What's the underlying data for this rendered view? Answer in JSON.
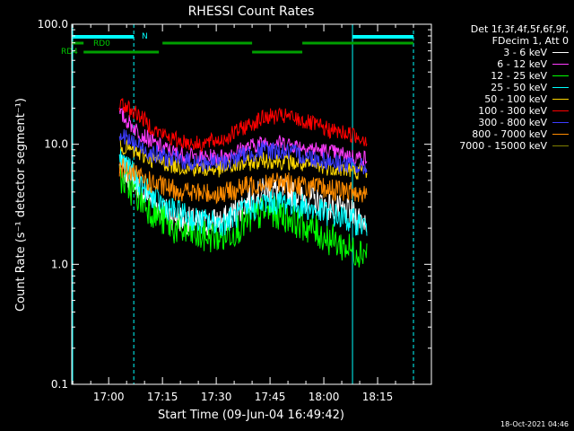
{
  "chart_data": {
    "type": "line",
    "title": "RHESSI Count Rates",
    "xlabel": "Start Time (09-Jun-04 16:49:42)",
    "ylabel": "Count Rate (s⁻¹ detector segment⁻¹)",
    "y_scale": "log",
    "ylim": [
      0.1,
      100
    ],
    "xlim": [
      "16:49:42",
      "18:30:00"
    ],
    "x_ticks": [
      "17:00",
      "17:15",
      "17:30",
      "17:45",
      "18:00",
      "18:15"
    ],
    "y_ticks": [
      "100.0",
      "10.0",
      "1.0",
      "0.1"
    ],
    "grid": false,
    "legend_position": "right",
    "series": [
      {
        "name": "3 - 6 keV",
        "color": "#ffffff",
        "x": [
          "17:03",
          "17:08",
          "17:13",
          "17:18",
          "17:25",
          "17:32",
          "17:38",
          "17:44",
          "17:50",
          "17:56",
          "18:02",
          "18:08",
          "18:12"
        ],
        "y": [
          6.5,
          4.7,
          3.2,
          2.5,
          2.2,
          2.3,
          3.2,
          4.2,
          4.1,
          3.5,
          3.0,
          2.6,
          2.3
        ]
      },
      {
        "name": "6 - 12 keV",
        "color": "#ff3cff",
        "x": [
          "17:03",
          "17:08",
          "17:13",
          "17:18",
          "17:25",
          "17:32",
          "17:38",
          "17:44",
          "17:50",
          "17:56",
          "18:02",
          "18:08",
          "18:12"
        ],
        "y": [
          18,
          13,
          10,
          8.6,
          7.7,
          7.9,
          9.3,
          10.5,
          10.1,
          9.3,
          8.6,
          7.9,
          7.6
        ]
      },
      {
        "name": "12 - 25 keV",
        "color": "#00ff00",
        "x": [
          "17:03",
          "17:08",
          "17:13",
          "17:18",
          "17:25",
          "17:32",
          "17:38",
          "17:44",
          "17:50",
          "17:56",
          "18:02",
          "18:08",
          "18:12"
        ],
        "y": [
          5.3,
          3.7,
          2.6,
          2.0,
          1.7,
          1.7,
          2.2,
          2.8,
          2.5,
          2.0,
          1.6,
          1.3,
          1.3
        ]
      },
      {
        "name": "25 - 50 keV",
        "color": "#00ffff",
        "x": [
          "17:03",
          "17:08",
          "17:13",
          "17:18",
          "17:25",
          "17:32",
          "17:38",
          "17:44",
          "17:50",
          "17:56",
          "18:02",
          "18:08",
          "18:12"
        ],
        "y": [
          8.0,
          5.0,
          3.5,
          2.8,
          2.3,
          2.2,
          2.8,
          3.3,
          3.3,
          2.9,
          2.6,
          2.3,
          2.1
        ]
      },
      {
        "name": "50 - 100 keV",
        "color": "#ffd700",
        "x": [
          "17:03",
          "17:08",
          "17:13",
          "17:18",
          "17:25",
          "17:32",
          "17:38",
          "17:44",
          "17:50",
          "17:56",
          "18:02",
          "18:08",
          "18:12"
        ],
        "y": [
          10,
          8.4,
          7.3,
          6.7,
          6.2,
          6.2,
          6.9,
          7.4,
          7.1,
          6.6,
          6.4,
          6.0,
          5.9
        ]
      },
      {
        "name": "100 - 300 keV",
        "color": "#ff0000",
        "x": [
          "17:03",
          "17:08",
          "17:13",
          "17:18",
          "17:25",
          "17:32",
          "17:38",
          "17:44",
          "17:50",
          "17:56",
          "18:02",
          "18:08",
          "18:12"
        ],
        "y": [
          22,
          18,
          13,
          11,
          10,
          11,
          14,
          17,
          17,
          15,
          13,
          12,
          11
        ]
      },
      {
        "name": "300 - 800 keV",
        "color": "#3c3cff",
        "x": [
          "17:03",
          "17:08",
          "17:13",
          "17:18",
          "17:25",
          "17:32",
          "17:38",
          "17:44",
          "17:50",
          "17:56",
          "18:02",
          "18:08",
          "18:12"
        ],
        "y": [
          12,
          9.8,
          8.2,
          7.5,
          7.0,
          7.0,
          8.2,
          9.0,
          8.6,
          7.8,
          7.2,
          6.6,
          6.3
        ]
      },
      {
        "name": "800 - 7000 keV",
        "color": "#ff8c00",
        "x": [
          "17:03",
          "17:08",
          "17:13",
          "17:18",
          "17:25",
          "17:32",
          "17:38",
          "17:44",
          "17:50",
          "17:56",
          "18:02",
          "18:08",
          "18:12"
        ],
        "y": [
          6.5,
          5.4,
          4.6,
          4.2,
          3.9,
          3.9,
          4.4,
          4.9,
          4.8,
          4.4,
          4.2,
          4.0,
          3.9
        ]
      },
      {
        "name": "7000 - 15000 keV",
        "color": "#808000",
        "x": [],
        "y": []
      }
    ],
    "annotations": {
      "legend_header": [
        "Det 1f,3f,4f,5f,6f,9f,",
        "FDecim 1, Att 0"
      ],
      "rd0_label": "RD0",
      "rd4_label": "RD4",
      "n_label": "N",
      "timestamp": "18-Oct-2021 04:46",
      "solid_markers": [
        "16:49:42",
        "18:08"
      ],
      "dashed_markers": [
        "17:07",
        "18:25"
      ],
      "night_bars": [
        [
          "16:49:42",
          "17:07"
        ],
        [
          "18:08",
          "18:25"
        ]
      ],
      "rd0_bars": [
        [
          "16:49:42",
          "16:53"
        ],
        [
          "17:15",
          "17:40"
        ],
        [
          "17:54",
          "18:25"
        ]
      ],
      "rd4_bars": [
        [
          "16:53",
          "17:14"
        ],
        [
          "17:40",
          "17:54"
        ]
      ]
    }
  }
}
